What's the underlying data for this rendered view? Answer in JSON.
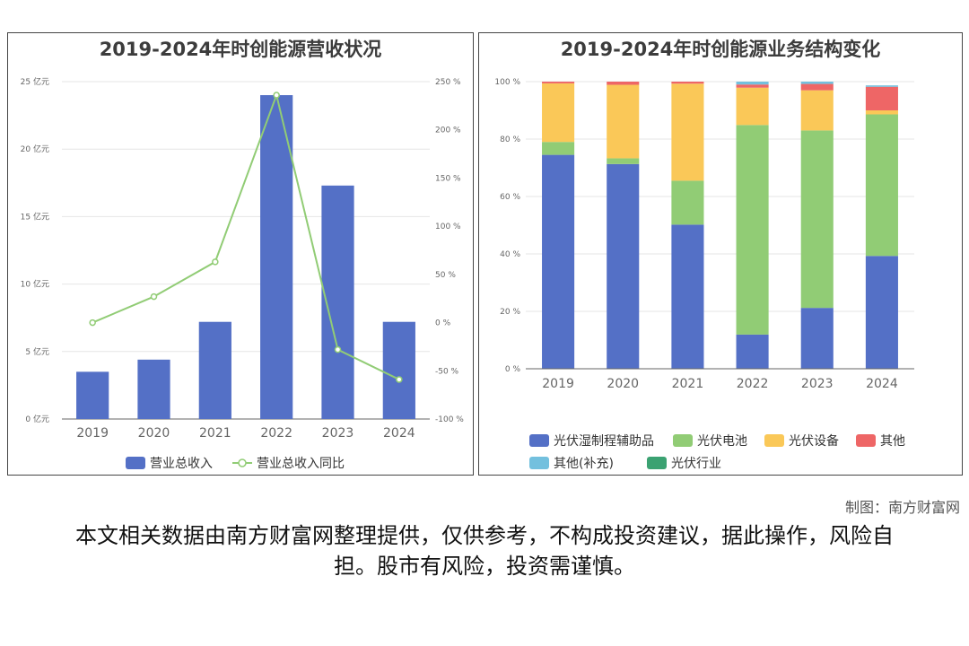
{
  "credit": "制图：南方财富网",
  "disclaimer": "本文相关数据由南方财富网整理提供，仅供参考，不构成投资建议，据此操作，风险自担。股市有风险，投资需谨慎。",
  "chart_data": [
    {
      "type": "bar",
      "title": "2019-2024年时创能源营收状况",
      "categories": [
        "2019",
        "2020",
        "2021",
        "2022",
        "2023",
        "2024"
      ],
      "series": [
        {
          "name": "营业总收入",
          "type": "bar",
          "axis": "left",
          "color": "#5470c6",
          "values": [
            3.5,
            4.4,
            7.2,
            24.0,
            17.3,
            7.2
          ]
        },
        {
          "name": "营业总收入同比",
          "type": "line",
          "axis": "right",
          "color": "#91cc75",
          "values": [
            0,
            27,
            63,
            236,
            -28,
            -59
          ]
        }
      ],
      "y_left": {
        "range": [
          0,
          25
        ],
        "ticks": [
          "0 亿元",
          "5 亿元",
          "10 亿元",
          "15 亿元",
          "20 亿元",
          "25 亿元"
        ]
      },
      "y_right": {
        "range": [
          -100,
          250
        ],
        "ticks": [
          "-100 %",
          "-50 %",
          "0 %",
          "50 %",
          "100 %",
          "150 %",
          "200 %",
          "250 %"
        ]
      },
      "legend_position": "bottom-center"
    },
    {
      "type": "bar",
      "stacked": true,
      "title": "2019-2024年时创能源业务结构变化",
      "categories": [
        "2019",
        "2020",
        "2021",
        "2022",
        "2023",
        "2024"
      ],
      "series": [
        {
          "name": "光伏湿制程辅助品",
          "color": "#5470c6",
          "values": [
            74.5,
            71.3,
            50.2,
            11.9,
            21.2,
            39.3
          ]
        },
        {
          "name": "光伏电池",
          "color": "#91cc75",
          "values": [
            4.5,
            2.0,
            15.3,
            73.0,
            61.8,
            49.3
          ]
        },
        {
          "name": "光伏设备",
          "color": "#fac858",
          "values": [
            20.4,
            25.6,
            33.8,
            13.0,
            14.0,
            1.4
          ]
        },
        {
          "name": "其他",
          "color": "#ee6666",
          "values": [
            0.6,
            1.1,
            0.7,
            1.1,
            2.2,
            8.2
          ]
        },
        {
          "name": "其他(补充)",
          "color": "#73c0de",
          "values": [
            0,
            0,
            0,
            1.0,
            0.8,
            0.5
          ]
        },
        {
          "name": "光伏行业",
          "color": "#3ba272",
          "values": [
            0,
            0,
            0,
            0,
            0,
            0
          ]
        }
      ],
      "y": {
        "range": [
          0,
          100
        ],
        "ticks": [
          "0 %",
          "20 %",
          "40 %",
          "60 %",
          "80 %",
          "100 %"
        ]
      },
      "legend_position": "bottom-center"
    }
  ]
}
